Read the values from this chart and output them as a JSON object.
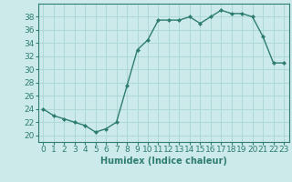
{
  "x": [
    0,
    1,
    2,
    3,
    4,
    5,
    6,
    7,
    8,
    9,
    10,
    11,
    12,
    13,
    14,
    15,
    16,
    17,
    18,
    19,
    20,
    21,
    22,
    23
  ],
  "y": [
    24,
    23,
    22.5,
    22,
    21.5,
    20.5,
    21,
    22,
    27.5,
    33,
    34.5,
    37.5,
    37.5,
    37.5,
    38,
    37,
    38,
    39,
    38.5,
    38.5,
    38,
    35,
    31,
    31
  ],
  "xlabel": "Humidex (Indice chaleur)",
  "line_color": "#2e7d6e",
  "marker_color": "#2e7d6e",
  "bg_color": "#cceaea",
  "grid_color": "#b0d8d8",
  "ylim": [
    19,
    40
  ],
  "xlim": [
    -0.5,
    23.5
  ],
  "yticks": [
    20,
    22,
    24,
    26,
    28,
    30,
    32,
    34,
    36,
    38
  ],
  "xticks": [
    0,
    1,
    2,
    3,
    4,
    5,
    6,
    7,
    8,
    9,
    10,
    11,
    12,
    13,
    14,
    15,
    16,
    17,
    18,
    19,
    20,
    21,
    22,
    23
  ],
  "label_fontsize": 7,
  "tick_fontsize": 6.5
}
